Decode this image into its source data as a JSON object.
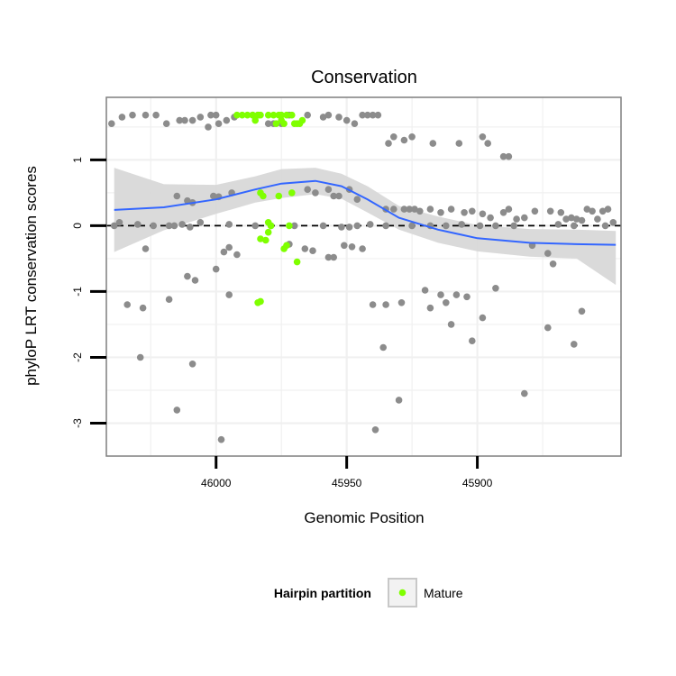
{
  "chart_data": {
    "type": "scatter",
    "title": "Conservation",
    "xlabel": "Genomic Position",
    "ylabel": "phyloP LRT conservation scores",
    "xlim": [
      46042,
      45845
    ],
    "ylim": [
      -3.5,
      1.95
    ],
    "x_reversed": true,
    "x_ticks": [
      46000,
      45950,
      45900
    ],
    "x_tick_labels": [
      "46000",
      "45950",
      "45900"
    ],
    "y_ticks": [
      -3,
      -2,
      -1,
      0,
      1
    ],
    "y_tick_labels": [
      "-3",
      "-2",
      "-1",
      "0",
      "1"
    ],
    "reference_line": {
      "y": 0,
      "style": "dashed",
      "color": "#000000"
    },
    "legend": {
      "title": "Hairpin partition",
      "entries": [
        "Mature"
      ],
      "position": "bottom"
    },
    "colors": {
      "other": "#8c8c8c",
      "mature": "#7fff00",
      "smooth": "#3366ff",
      "band": "#d6d6d6",
      "panel": "#ffffff",
      "grid": "#f0f0f0",
      "border": "#7f7f7f"
    },
    "smooth": {
      "x": [
        46039,
        46020,
        46000,
        45985,
        45975,
        45962,
        45952,
        45942,
        45930,
        45915,
        45900,
        45880,
        45862,
        45847
      ],
      "y": [
        0.24,
        0.28,
        0.4,
        0.55,
        0.64,
        0.68,
        0.6,
        0.4,
        0.12,
        -0.06,
        -0.19,
        -0.26,
        -0.28,
        -0.29
      ],
      "upper": [
        0.88,
        0.63,
        0.62,
        0.75,
        0.86,
        0.88,
        0.79,
        0.6,
        0.3,
        0.14,
        0.01,
        -0.05,
        -0.06,
        -0.08
      ],
      "lower": [
        -0.4,
        -0.07,
        0.18,
        0.35,
        0.42,
        0.48,
        0.41,
        0.2,
        -0.06,
        -0.26,
        -0.39,
        -0.47,
        -0.5,
        -0.9
      ]
    },
    "series": [
      {
        "name": "Other",
        "points": [
          [
            46036,
            1.65
          ],
          [
            46032,
            1.68
          ],
          [
            46027,
            1.68
          ],
          [
            46023,
            1.68
          ],
          [
            46019,
            1.55
          ],
          [
            46014,
            1.6
          ],
          [
            46009,
            1.6
          ],
          [
            46006,
            1.65
          ],
          [
            46002,
            1.68
          ],
          [
            46000,
            1.68
          ],
          [
            45999,
            1.55
          ],
          [
            45996,
            1.6
          ],
          [
            45993,
            1.65
          ],
          [
            45986,
            1.68
          ],
          [
            45984,
            1.68
          ],
          [
            45980,
            1.55
          ],
          [
            45978,
            1.55
          ],
          [
            45972,
            1.68
          ],
          [
            45965,
            1.68
          ],
          [
            45959,
            1.65
          ],
          [
            45957,
            1.68
          ],
          [
            45953,
            1.65
          ],
          [
            45950,
            1.6
          ],
          [
            45947,
            1.55
          ],
          [
            45944,
            1.68
          ],
          [
            45942,
            1.68
          ],
          [
            45940,
            1.68
          ],
          [
            45938,
            1.68
          ],
          [
            46012,
            1.6
          ],
          [
            46003,
            1.5
          ],
          [
            46040,
            1.55
          ],
          [
            45975,
            1.55
          ],
          [
            45934,
            1.25
          ],
          [
            45932,
            1.35
          ],
          [
            45928,
            1.3
          ],
          [
            45925,
            1.35
          ],
          [
            45917,
            1.25
          ],
          [
            45907,
            1.25
          ],
          [
            45898,
            1.35
          ],
          [
            45896,
            1.25
          ],
          [
            45890,
            1.05
          ],
          [
            45888,
            1.05
          ],
          [
            46015,
            0.45
          ],
          [
            46011,
            0.38
          ],
          [
            46009,
            0.35
          ],
          [
            46001,
            0.45
          ],
          [
            45999,
            0.44
          ],
          [
            45994,
            0.5
          ],
          [
            45965,
            0.55
          ],
          [
            45962,
            0.5
          ],
          [
            45957,
            0.55
          ],
          [
            45955,
            0.45
          ],
          [
            45953,
            0.45
          ],
          [
            45949,
            0.55
          ],
          [
            45946,
            0.4
          ],
          [
            45935,
            0.25
          ],
          [
            45932,
            0.25
          ],
          [
            45928,
            0.25
          ],
          [
            45926,
            0.25
          ],
          [
            45922,
            0.22
          ],
          [
            45918,
            0.25
          ],
          [
            45914,
            0.2
          ],
          [
            45910,
            0.25
          ],
          [
            45905,
            0.2
          ],
          [
            45902,
            0.22
          ],
          [
            45898,
            0.18
          ],
          [
            45895,
            0.12
          ],
          [
            45890,
            0.2
          ],
          [
            45888,
            0.25
          ],
          [
            45885,
            0.1
          ],
          [
            45882,
            0.12
          ],
          [
            45878,
            0.22
          ],
          [
            45872,
            0.22
          ],
          [
            45868,
            0.2
          ],
          [
            45866,
            0.1
          ],
          [
            45864,
            0.12
          ],
          [
            45862,
            0.1
          ],
          [
            45860,
            0.08
          ],
          [
            45858,
            0.25
          ],
          [
            45856,
            0.22
          ],
          [
            45854,
            0.1
          ],
          [
            45852,
            0.22
          ],
          [
            45850,
            0.25
          ],
          [
            45848,
            0.05
          ],
          [
            46039,
            0.0
          ],
          [
            46037,
            0.05
          ],
          [
            46030,
            0.02
          ],
          [
            46024,
            0.0
          ],
          [
            46018,
            0.0
          ],
          [
            46016,
            0.0
          ],
          [
            46013,
            0.02
          ],
          [
            46010,
            -0.02
          ],
          [
            46006,
            0.05
          ],
          [
            45995,
            0.02
          ],
          [
            45985,
            0.0
          ],
          [
            45979,
            0.0
          ],
          [
            45970,
            0.0
          ],
          [
            45959,
            0.0
          ],
          [
            45952,
            -0.02
          ],
          [
            45949,
            -0.02
          ],
          [
            45946,
            0.0
          ],
          [
            45941,
            0.02
          ],
          [
            45935,
            0.0
          ],
          [
            45925,
            0.0
          ],
          [
            45918,
            0.0
          ],
          [
            45912,
            0.0
          ],
          [
            45906,
            0.02
          ],
          [
            45899,
            0.0
          ],
          [
            45893,
            0.0
          ],
          [
            45886,
            0.0
          ],
          [
            45869,
            0.02
          ],
          [
            45863,
            0.0
          ],
          [
            45851,
            0.0
          ],
          [
            46027,
            -0.35
          ],
          [
            45997,
            -0.4
          ],
          [
            45995,
            -0.33
          ],
          [
            45992,
            -0.44
          ],
          [
            45972,
            -0.28
          ],
          [
            45966,
            -0.35
          ],
          [
            45963,
            -0.38
          ],
          [
            45957,
            -0.48
          ],
          [
            45955,
            -0.48
          ],
          [
            45951,
            -0.3
          ],
          [
            45948,
            -0.32
          ],
          [
            45944,
            -0.35
          ],
          [
            45879,
            -0.3
          ],
          [
            45873,
            -0.42
          ],
          [
            45871,
            -0.58
          ],
          [
            46011,
            -0.77
          ],
          [
            46008,
            -0.83
          ],
          [
            46000,
            -0.66
          ],
          [
            45995,
            -1.05
          ],
          [
            46034,
            -1.2
          ],
          [
            46028,
            -1.25
          ],
          [
            46018,
            -1.12
          ],
          [
            46029,
            -2.0
          ],
          [
            46009,
            -2.1
          ],
          [
            46015,
            -2.8
          ],
          [
            45998,
            -3.25
          ],
          [
            45935,
            -1.2
          ],
          [
            45929,
            -1.17
          ],
          [
            45920,
            -0.98
          ],
          [
            45918,
            -1.25
          ],
          [
            45914,
            -1.05
          ],
          [
            45912,
            -1.17
          ],
          [
            45908,
            -1.05
          ],
          [
            45910,
            -1.5
          ],
          [
            45904,
            -1.08
          ],
          [
            45902,
            -1.75
          ],
          [
            45898,
            -1.4
          ],
          [
            45893,
            -0.95
          ],
          [
            45882,
            -2.55
          ],
          [
            45873,
            -1.55
          ],
          [
            45863,
            -1.8
          ],
          [
            45860,
            -1.3
          ],
          [
            45940,
            -1.2
          ],
          [
            45936,
            -1.85
          ],
          [
            45930,
            -2.65
          ],
          [
            45939,
            -3.1
          ],
          [
            45924,
            0.25
          ]
        ]
      },
      {
        "name": "Mature",
        "points": [
          [
            45992,
            1.68
          ],
          [
            45990,
            1.68
          ],
          [
            45988,
            1.68
          ],
          [
            45986,
            1.68
          ],
          [
            45985,
            1.6
          ],
          [
            45984,
            1.68
          ],
          [
            45983,
            1.68
          ],
          [
            45980,
            1.68
          ],
          [
            45978,
            1.68
          ],
          [
            45976,
            1.68
          ],
          [
            45975,
            1.68
          ],
          [
            45973,
            1.68
          ],
          [
            45971,
            1.68
          ],
          [
            45970,
            1.55
          ],
          [
            45969,
            1.55
          ],
          [
            45968,
            1.55
          ],
          [
            45967,
            1.6
          ],
          [
            45977,
            1.55
          ],
          [
            45974,
            1.55
          ],
          [
            45975,
            1.6
          ],
          [
            45983,
            0.5
          ],
          [
            45982,
            0.45
          ],
          [
            45976,
            0.45
          ],
          [
            45971,
            0.5
          ],
          [
            45980,
            0.05
          ],
          [
            45979,
            0.0
          ],
          [
            45980,
            -0.1
          ],
          [
            45983,
            -0.2
          ],
          [
            45981,
            -0.22
          ],
          [
            45972,
            0.0
          ],
          [
            45973,
            -0.3
          ],
          [
            45974,
            -0.35
          ],
          [
            45969,
            -0.55
          ],
          [
            45983,
            -1.15
          ],
          [
            45984,
            -1.17
          ]
        ]
      }
    ]
  }
}
